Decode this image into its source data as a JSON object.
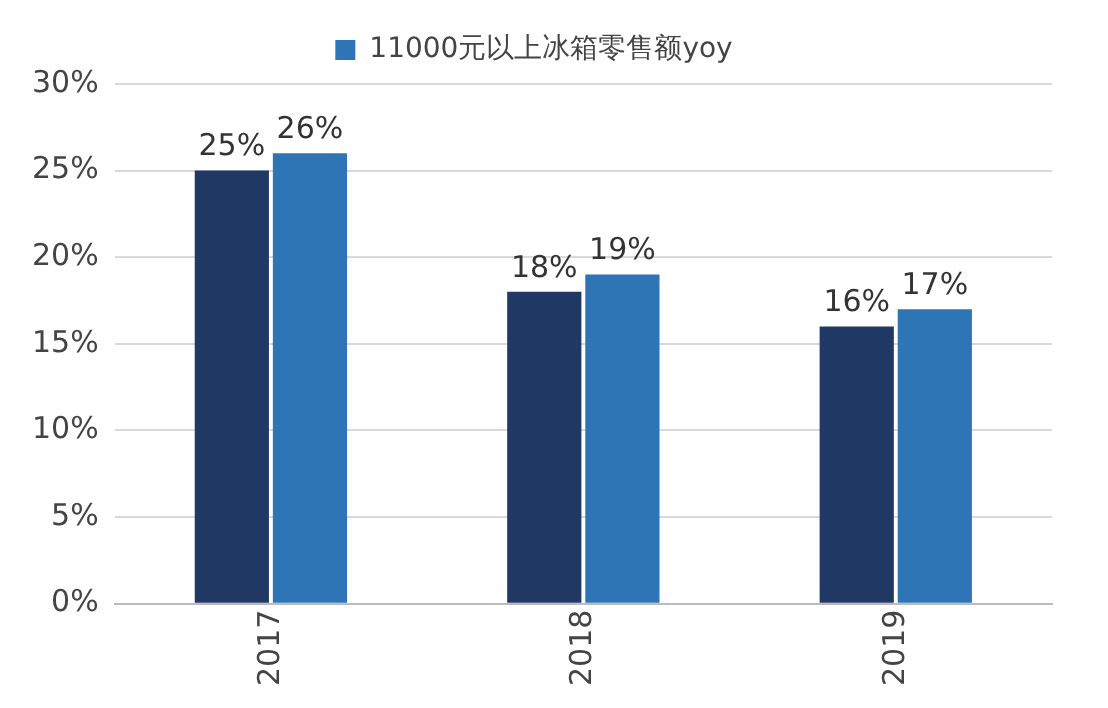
{
  "chart_data": {
    "type": "bar",
    "categories": [
      "2017",
      "2018",
      "2019"
    ],
    "series": [
      {
        "color": "#1f3864",
        "values": [
          25,
          18,
          16
        ],
        "value_labels": [
          "25%",
          "18%",
          "16%"
        ]
      },
      {
        "name": "11000元以上冰箱零售额yoy",
        "color": "#2e75b6",
        "values": [
          26,
          19,
          17
        ],
        "value_labels": [
          "26%",
          "19%",
          "17%"
        ]
      }
    ],
    "ylim": [
      0,
      30
    ],
    "yticks": [
      {
        "value": 0,
        "label": "0%"
      },
      {
        "value": 5,
        "label": "5%"
      },
      {
        "value": 10,
        "label": "10%"
      },
      {
        "value": 15,
        "label": "15%"
      },
      {
        "value": 20,
        "label": "20%"
      },
      {
        "value": 25,
        "label": "25%"
      },
      {
        "value": 30,
        "label": "30%"
      }
    ],
    "grid": "y",
    "legend": "top"
  }
}
